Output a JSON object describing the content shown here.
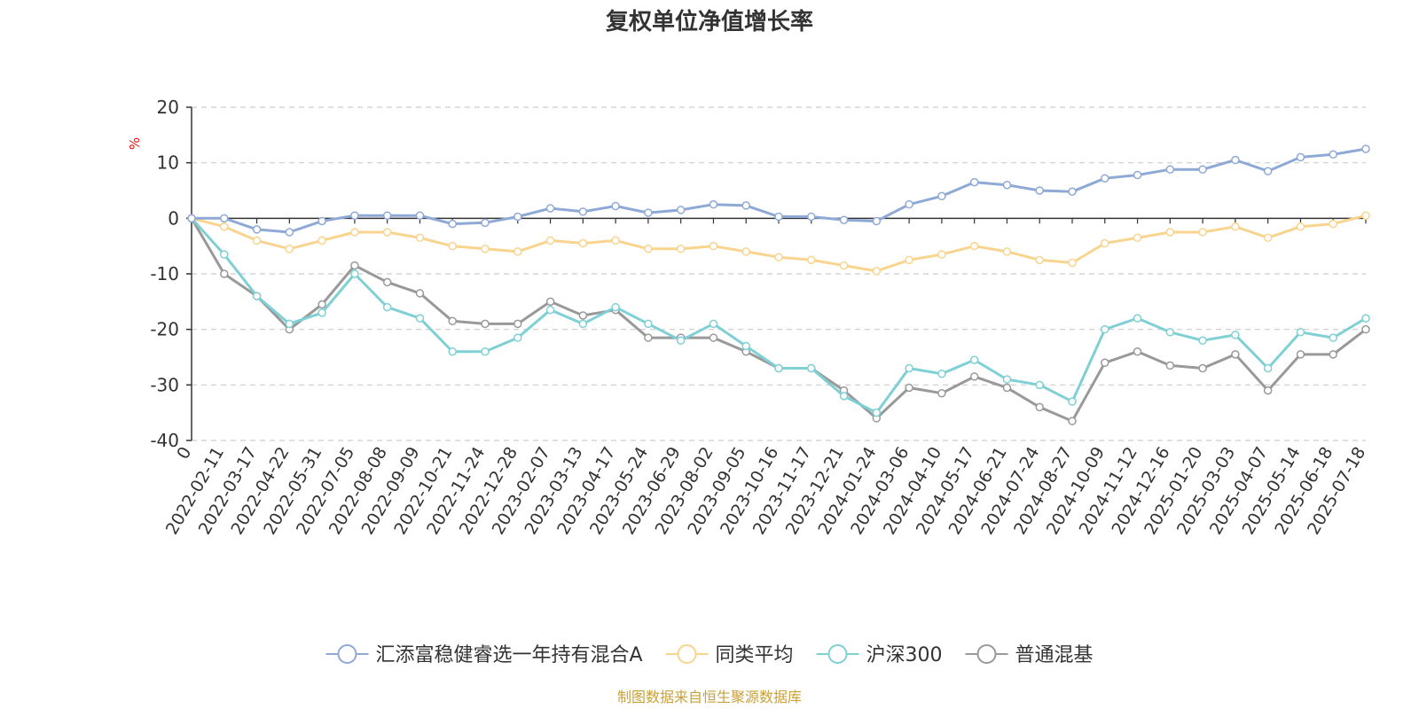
{
  "chart_data": {
    "type": "line",
    "title": "复权单位净值增长率",
    "ylabel": "%",
    "ylim": [
      -40,
      20
    ],
    "yticks": [
      "20",
      "10",
      "0",
      "-10",
      "-20",
      "-30",
      "-40"
    ],
    "ytick_values": [
      20,
      10,
      0,
      -10,
      -20,
      -30,
      -40
    ],
    "grid": true,
    "legend_position": "bottom",
    "x": [
      "0",
      "2022-02-11",
      "2022-03-17",
      "2022-04-22",
      "2022-05-31",
      "2022-07-05",
      "2022-08-08",
      "2022-09-09",
      "2022-10-21",
      "2022-11-24",
      "2022-12-28",
      "2023-02-07",
      "2023-03-13",
      "2023-04-17",
      "2023-05-24",
      "2023-06-29",
      "2023-08-02",
      "2023-09-05",
      "2023-10-16",
      "2023-11-17",
      "2023-12-21",
      "2024-01-24",
      "2024-03-06",
      "2024-04-10",
      "2024-05-17",
      "2024-06-21",
      "2024-07-24",
      "2024-08-27",
      "2024-10-09",
      "2024-11-12",
      "2024-12-16",
      "2025-01-20",
      "2025-03-03",
      "2025-04-07",
      "2025-05-14",
      "2025-06-18",
      "2025-07-18"
    ],
    "series": [
      {
        "name": "汇添富稳健睿选一年持有混合A",
        "color": "#8fa9d6",
        "values": [
          0,
          0,
          -2,
          -2.5,
          -0.5,
          0.5,
          0.5,
          0.5,
          -1,
          -0.8,
          0.3,
          1.8,
          1.2,
          2.2,
          1.0,
          1.5,
          2.5,
          2.3,
          0.3,
          0.3,
          -0.3,
          -0.5,
          2.5,
          4.0,
          6.5,
          6.0,
          5.0,
          4.8,
          7.2,
          7.8,
          8.8,
          8.8,
          10.5,
          8.5,
          11,
          11.5,
          12.5
        ]
      },
      {
        "name": "同类平均",
        "color": "#f9d48e",
        "values": [
          0,
          -1.5,
          -4,
          -5.5,
          -4,
          -2.5,
          -2.5,
          -3.5,
          -5,
          -5.5,
          -6,
          -4,
          -4.5,
          -4,
          -5.5,
          -5.5,
          -5,
          -6,
          -7,
          -7.5,
          -8.5,
          -9.5,
          -7.5,
          -6.5,
          -5,
          -6,
          -7.5,
          -8,
          -4.5,
          -3.5,
          -2.5,
          -2.5,
          -1.5,
          -3.5,
          -1.5,
          -1,
          0.5
        ]
      },
      {
        "name": "沪深300",
        "color": "#7fd0d5",
        "values": [
          0,
          -6.5,
          -14,
          -19,
          -17,
          -10,
          -16,
          -18,
          -24,
          -24,
          -21.5,
          -16.5,
          -19,
          -16,
          -19,
          -22,
          -19,
          -23,
          -27,
          -27,
          -32,
          -35,
          -27,
          -28,
          -25.5,
          -29,
          -30,
          -33,
          -20,
          -18,
          -20.5,
          -22,
          -21,
          -27,
          -20.5,
          -21.5,
          -18
        ]
      },
      {
        "name": "普通混基",
        "color": "#999999",
        "values": [
          0,
          -10,
          -14,
          -20,
          -15.5,
          -8.5,
          -11.5,
          -13.5,
          -18.5,
          -19,
          -19,
          -15,
          -17.5,
          -16.5,
          -21.5,
          -21.5,
          -21.5,
          -24,
          -27,
          -27,
          -31,
          -36,
          -30.5,
          -31.5,
          -28.5,
          -30.5,
          -34,
          -36.5,
          -26,
          -24,
          -26.5,
          -27,
          -24.5,
          -31,
          -24.5,
          -24.5,
          -20
        ]
      }
    ]
  },
  "footer": {
    "source": "制图数据来自恒生聚源数据库"
  }
}
